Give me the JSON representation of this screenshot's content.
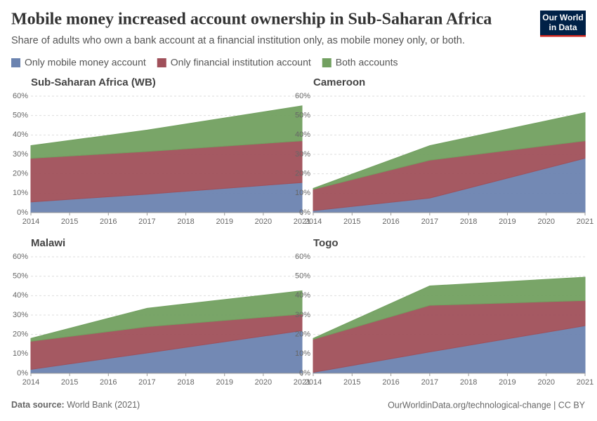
{
  "title": "Mobile money increased account ownership in Sub-Saharan Africa",
  "subtitle": "Share of adults who own a bank account at a financial institution only, as mobile money only, or both.",
  "logo": [
    "Our World",
    "in Data"
  ],
  "source_label": "Data source:",
  "source": "World Bank (2021)",
  "url": "OurWorldinData.org/technological-change | CC BY",
  "chart_data": [
    {
      "type": "area",
      "stacked": true,
      "grid": true,
      "title": "Sub-Saharan Africa (WB)",
      "x": [
        2014,
        2017,
        2021
      ],
      "xlim": [
        2014,
        2021
      ],
      "xticks": [
        2014,
        2015,
        2016,
        2017,
        2018,
        2019,
        2020,
        2021
      ],
      "ylim": [
        0,
        60
      ],
      "yticks": [
        {
          "value": 0,
          "label": "0%"
        },
        {
          "value": 10,
          "label": "10%"
        },
        {
          "value": 20,
          "label": "20%"
        },
        {
          "value": 30,
          "label": "30%"
        },
        {
          "value": 40,
          "label": "40%"
        },
        {
          "value": 50,
          "label": "50%"
        },
        {
          "value": 60,
          "label": "60%"
        }
      ],
      "series": [
        {
          "name": "Only mobile money account",
          "color": "#6b83b0",
          "values": [
            5.5,
            9.5,
            15.5
          ]
        },
        {
          "name": "Only financial institution account",
          "color": "#a0505a",
          "values": [
            22.5,
            22,
            21.5
          ]
        },
        {
          "name": "Both accounts",
          "color": "#72a060",
          "values": [
            6.5,
            11,
            18
          ]
        }
      ]
    },
    {
      "type": "area",
      "stacked": true,
      "grid": true,
      "title": "Cameroon",
      "x": [
        2014,
        2017,
        2021
      ],
      "xlim": [
        2014,
        2021
      ],
      "xticks": [
        2014,
        2015,
        2016,
        2017,
        2018,
        2019,
        2020,
        2021
      ],
      "ylim": [
        0,
        60
      ],
      "yticks": [
        {
          "value": 0,
          "label": "0%"
        },
        {
          "value": 10,
          "label": "10%"
        },
        {
          "value": 20,
          "label": "20%"
        },
        {
          "value": 30,
          "label": "30%"
        },
        {
          "value": 40,
          "label": "40%"
        },
        {
          "value": 50,
          "label": "50%"
        },
        {
          "value": 60,
          "label": "60%"
        }
      ],
      "series": [
        {
          "name": "Only mobile money account",
          "color": "#6b83b0",
          "values": [
            1,
            7.5,
            28
          ]
        },
        {
          "name": "Only financial institution account",
          "color": "#a0505a",
          "values": [
            11,
            19.5,
            9
          ]
        },
        {
          "name": "Both accounts",
          "color": "#72a060",
          "values": [
            0.5,
            7.5,
            14.5
          ]
        }
      ]
    },
    {
      "type": "area",
      "stacked": true,
      "grid": true,
      "title": "Malawi",
      "x": [
        2014,
        2017,
        2021
      ],
      "xlim": [
        2014,
        2021
      ],
      "xticks": [
        2014,
        2015,
        2016,
        2017,
        2018,
        2019,
        2020,
        2021
      ],
      "ylim": [
        0,
        60
      ],
      "yticks": [
        {
          "value": 0,
          "label": "0%"
        },
        {
          "value": 10,
          "label": "10%"
        },
        {
          "value": 20,
          "label": "20%"
        },
        {
          "value": 30,
          "label": "30%"
        },
        {
          "value": 40,
          "label": "40%"
        },
        {
          "value": 50,
          "label": "50%"
        },
        {
          "value": 60,
          "label": "60%"
        }
      ],
      "series": [
        {
          "name": "Only mobile money account",
          "color": "#6b83b0",
          "values": [
            2,
            10.5,
            22
          ]
        },
        {
          "name": "Only financial institution account",
          "color": "#a0505a",
          "values": [
            14.5,
            13.5,
            8.5
          ]
        },
        {
          "name": "Both accounts",
          "color": "#72a060",
          "values": [
            1.5,
            9.5,
            12
          ]
        }
      ]
    },
    {
      "type": "area",
      "stacked": true,
      "grid": true,
      "title": "Togo",
      "x": [
        2014,
        2017,
        2021
      ],
      "xlim": [
        2014,
        2021
      ],
      "xticks": [
        2014,
        2015,
        2016,
        2017,
        2018,
        2019,
        2020,
        2021
      ],
      "ylim": [
        0,
        60
      ],
      "yticks": [
        {
          "value": 0,
          "label": "0%"
        },
        {
          "value": 10,
          "label": "10%"
        },
        {
          "value": 20,
          "label": "20%"
        },
        {
          "value": 30,
          "label": "30%"
        },
        {
          "value": 40,
          "label": "40%"
        },
        {
          "value": 50,
          "label": "50%"
        },
        {
          "value": 60,
          "label": "60%"
        }
      ],
      "series": [
        {
          "name": "Only mobile money account",
          "color": "#6b83b0",
          "values": [
            0.5,
            11,
            24.5
          ]
        },
        {
          "name": "Only financial institution account",
          "color": "#a0505a",
          "values": [
            17,
            24,
            13
          ]
        },
        {
          "name": "Both accounts",
          "color": "#72a060",
          "values": [
            0.5,
            10,
            12
          ]
        }
      ]
    }
  ]
}
